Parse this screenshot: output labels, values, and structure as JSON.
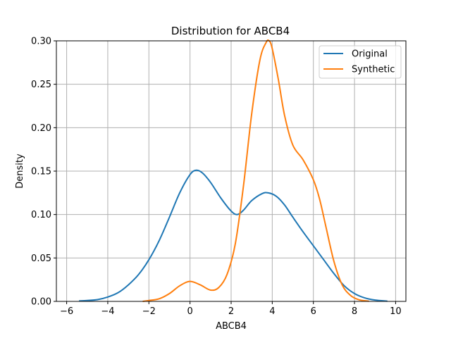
{
  "chart_data": {
    "type": "line",
    "title": "Distribution for ABCB4",
    "xlabel": "ABCB4",
    "ylabel": "Density",
    "xlim": [
      -6.5,
      10.5
    ],
    "ylim": [
      0,
      0.3
    ],
    "xticks": [
      -6,
      -4,
      -2,
      0,
      2,
      4,
      6,
      8,
      10
    ],
    "xtick_labels": [
      "−6",
      "−4",
      "−2",
      "0",
      "2",
      "4",
      "6",
      "8",
      "10"
    ],
    "yticks": [
      0,
      0.05,
      0.1,
      0.15,
      0.2,
      0.25,
      0.3
    ],
    "ytick_labels": [
      "0.00",
      "0.05",
      "0.10",
      "0.15",
      "0.20",
      "0.25",
      "0.30"
    ],
    "grid": true,
    "legend_position": "top-right",
    "series": [
      {
        "name": "Original",
        "color": "#1f77b4",
        "x": [
          -5.4,
          -5.0,
          -4.5,
          -4.0,
          -3.5,
          -3.0,
          -2.5,
          -2.0,
          -1.5,
          -1.0,
          -0.5,
          0.0,
          0.3,
          0.6,
          1.0,
          1.5,
          2.0,
          2.3,
          2.6,
          3.0,
          3.5,
          3.8,
          4.2,
          4.6,
          5.0,
          5.5,
          6.0,
          6.5,
          7.0,
          7.5,
          8.0,
          8.5,
          9.0,
          9.6
        ],
        "y": [
          0.0005,
          0.001,
          0.002,
          0.005,
          0.01,
          0.019,
          0.031,
          0.048,
          0.07,
          0.097,
          0.125,
          0.146,
          0.151,
          0.148,
          0.137,
          0.119,
          0.104,
          0.1,
          0.105,
          0.116,
          0.124,
          0.125,
          0.121,
          0.111,
          0.097,
          0.08,
          0.064,
          0.048,
          0.032,
          0.018,
          0.009,
          0.004,
          0.0015,
          0.0003
        ]
      },
      {
        "name": "Synthetic",
        "color": "#ff7f0e",
        "x": [
          -2.3,
          -2.0,
          -1.5,
          -1.0,
          -0.5,
          0.0,
          0.5,
          1.0,
          1.4,
          1.8,
          2.2,
          2.6,
          3.0,
          3.4,
          3.7,
          3.85,
          4.0,
          4.3,
          4.6,
          5.0,
          5.5,
          6.0,
          6.3,
          6.6,
          7.0,
          7.4,
          7.8,
          8.2,
          8.7
        ],
        "y": [
          0.0,
          0.001,
          0.003,
          0.009,
          0.018,
          0.023,
          0.019,
          0.013,
          0.016,
          0.031,
          0.066,
          0.133,
          0.216,
          0.278,
          0.298,
          0.3,
          0.291,
          0.255,
          0.214,
          0.18,
          0.163,
          0.14,
          0.118,
          0.087,
          0.046,
          0.019,
          0.007,
          0.002,
          0.0002
        ]
      }
    ]
  }
}
